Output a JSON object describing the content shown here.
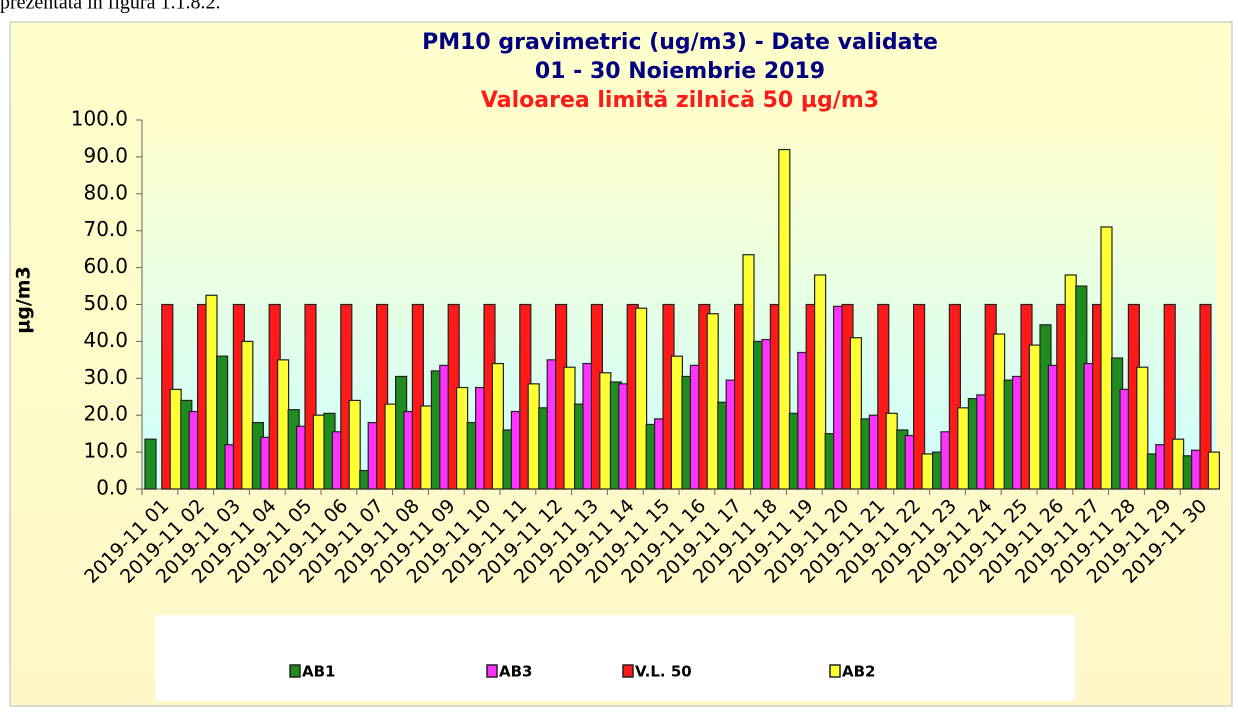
{
  "document_text": "prezentata in figura 1.1.8.2.",
  "chart_data": {
    "type": "bar",
    "title": "PM10 gravimetric (ug/m3) - Date validate",
    "subtitle": "01 - 30 Noiembrie 2019",
    "annotation": "Valoarea limită zilnică 50 µg/m3",
    "y_label": "µg/m3",
    "categories": [
      "2019-11 01",
      "2019-11 02",
      "2019-11 03",
      "2019-11 04",
      "2019-11 05",
      "2019-11 06",
      "2019-11 07",
      "2019-11 08",
      "2019-11 09",
      "2019-11 10",
      "2019-11 11",
      "2019-11 12",
      "2019-11 13",
      "2019-11 14",
      "2019-11 15",
      "2019-11 16",
      "2019-11 17",
      "2019-11 18",
      "2019-11 19",
      "2019-11 20",
      "2019-11 21",
      "2019-11 22",
      "2019-11 23",
      "2019-11 24",
      "2019-11 25",
      "2019-11 26",
      "2019-11 27",
      "2019-11 28",
      "2019-11 29",
      "2019-11 30"
    ],
    "series": [
      {
        "name": "AB1",
        "color": "#1e8c1e",
        "values": [
          13.5,
          24,
          36,
          18,
          21.5,
          20.5,
          5,
          30.5,
          32,
          18,
          16,
          22,
          23,
          29,
          17.5,
          30.5,
          23.5,
          40,
          20.5,
          15,
          19,
          16,
          10,
          24.5,
          29.5,
          44.5,
          55,
          35.5,
          9.5,
          9
        ]
      },
      {
        "name": "AB3",
        "color": "#ff33ff",
        "values": [
          null,
          21,
          12,
          14,
          17,
          15.5,
          18,
          21,
          33.5,
          27.5,
          21,
          35,
          34,
          28.5,
          19,
          33.5,
          29.5,
          40.5,
          37,
          49.5,
          20,
          14.5,
          15.5,
          25.5,
          30.5,
          33.5,
          34,
          27,
          12,
          10.5
        ]
      },
      {
        "name": "V.L. 50",
        "color": "#ff1a1a",
        "values": [
          50,
          50,
          50,
          50,
          50,
          50,
          50,
          50,
          50,
          50,
          50,
          50,
          50,
          50,
          50,
          50,
          50,
          50,
          50,
          50,
          50,
          50,
          50,
          50,
          50,
          50,
          50,
          50,
          50,
          50
        ]
      },
      {
        "name": "AB2",
        "color": "#ffff33",
        "values": [
          27,
          52.5,
          40,
          35,
          20,
          24,
          23,
          22.5,
          27.5,
          34,
          28.5,
          33,
          31.5,
          49,
          36,
          47.5,
          63.5,
          92,
          58,
          41,
          20.5,
          9.5,
          22,
          42,
          39,
          58,
          71,
          33,
          13.5,
          10
        ]
      }
    ],
    "ylim": [
      0,
      100
    ],
    "yticks": [
      {
        "value": 0,
        "label": "0.0"
      },
      {
        "value": 10,
        "label": "10.0"
      },
      {
        "value": 20,
        "label": "20.0"
      },
      {
        "value": 30,
        "label": "30.0"
      },
      {
        "value": 40,
        "label": "40.0"
      },
      {
        "value": 50,
        "label": "50.0"
      },
      {
        "value": 60,
        "label": "60.0"
      },
      {
        "value": 70,
        "label": "70.0"
      },
      {
        "value": 80,
        "label": "80.0"
      },
      {
        "value": 90,
        "label": "90.0"
      },
      {
        "value": 100,
        "label": "100.0"
      }
    ],
    "grid": false,
    "legend": "bottom"
  }
}
